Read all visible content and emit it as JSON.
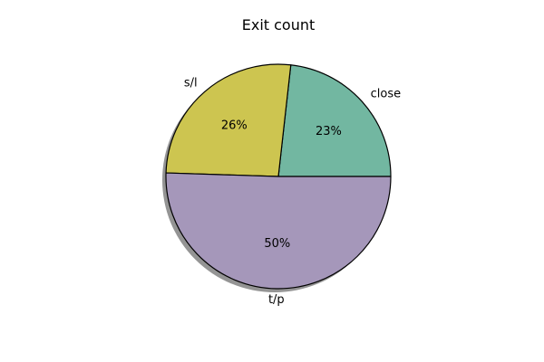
{
  "chart_data": {
    "type": "pie",
    "title": "Exit count",
    "categories": [
      "close",
      "s/l",
      "t/p"
    ],
    "values": [
      23,
      26,
      50
    ],
    "value_labels": [
      "23%",
      "26%",
      "50%"
    ],
    "colors": [
      "#72b7a1",
      "#cdc550",
      "#a597ba"
    ],
    "edge_color": "#000000",
    "shadow": true,
    "start_angle_deg": 0,
    "direction": "counterclockwise",
    "legend": "none"
  }
}
